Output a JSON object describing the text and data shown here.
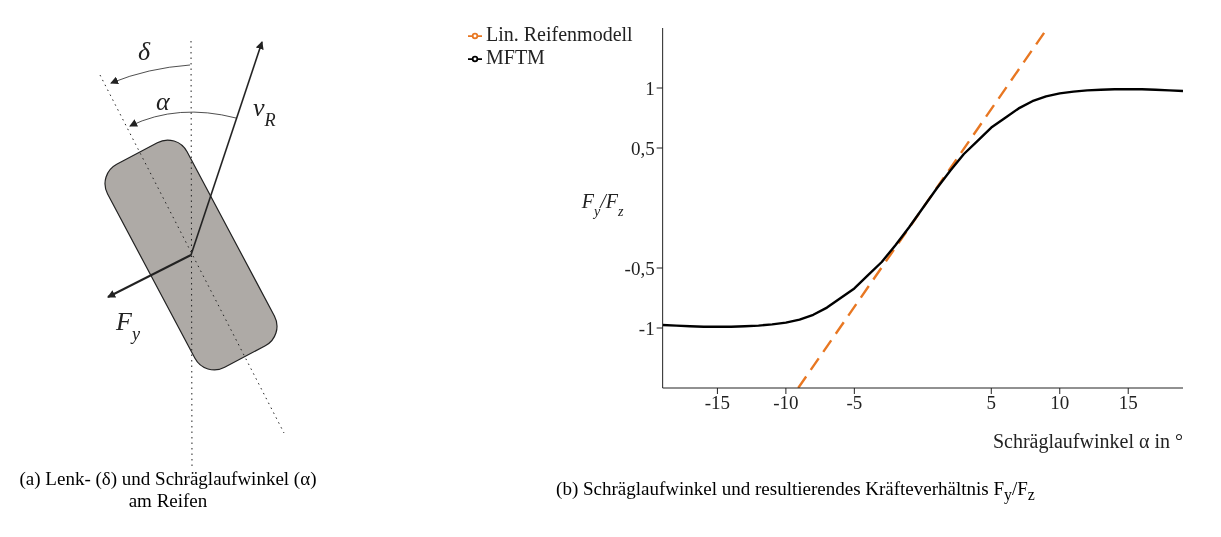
{
  "chart_data": [
    {
      "type": "other",
      "title": "(a) Lenk- (δ) und Schräglaufwinkel (α) am Reifen",
      "annotations": [
        "δ",
        "α",
        "v$_{R}$",
        "F$_{y}$"
      ]
    },
    {
      "type": "line",
      "title": "(b) Schräglaufwinkel und resultierendes Kräfteverhältnis F$_{y}$/F$_{z}$",
      "xlabel": "Schräglaufwinkel α in °",
      "ylabel": "F$_{y}$/F$_{z}$",
      "xlim": [
        -19,
        19
      ],
      "ylim": [
        -1.5,
        1.5
      ],
      "xticks": [
        -15,
        -10,
        -5,
        5,
        10,
        15
      ],
      "yticks": [
        -1,
        {
          "value": -0.5,
          "label": "-0,5"
        },
        {
          "value": 0.5,
          "label": "0,5"
        },
        1
      ],
      "grid": false,
      "legend": "top left",
      "marker": "none",
      "series": [
        {
          "name": "Lin. Reifenmodell",
          "color": "#e87722",
          "line_style": "dashed",
          "x": [
            -9.1,
            9.1
          ],
          "values": [
            -1.5,
            1.5
          ]
        },
        {
          "name": "MFTM",
          "color": "#000000",
          "line_style": "solid",
          "x": [
            -19,
            -18,
            -17,
            -16,
            -15,
            -14,
            -13,
            -12,
            -11,
            -10,
            -9,
            -8,
            -7,
            -6,
            -5,
            -4,
            -3,
            -2,
            -1,
            0,
            1,
            2,
            3,
            4,
            5,
            6,
            7,
            8,
            9,
            10,
            11,
            12,
            13,
            14,
            15,
            16,
            17,
            18,
            19
          ],
          "values": [
            -0.975,
            -0.98,
            -0.985,
            -0.99,
            -0.99,
            -0.99,
            -0.985,
            -0.98,
            -0.97,
            -0.955,
            -0.93,
            -0.89,
            -0.83,
            -0.75,
            -0.67,
            -0.56,
            -0.45,
            -0.31,
            -0.16,
            0,
            0.16,
            0.31,
            0.45,
            0.56,
            0.67,
            0.75,
            0.83,
            0.89,
            0.93,
            0.955,
            0.97,
            0.98,
            0.985,
            0.99,
            0.99,
            0.99,
            0.985,
            0.98,
            0.975
          ]
        }
      ]
    }
  ]
}
